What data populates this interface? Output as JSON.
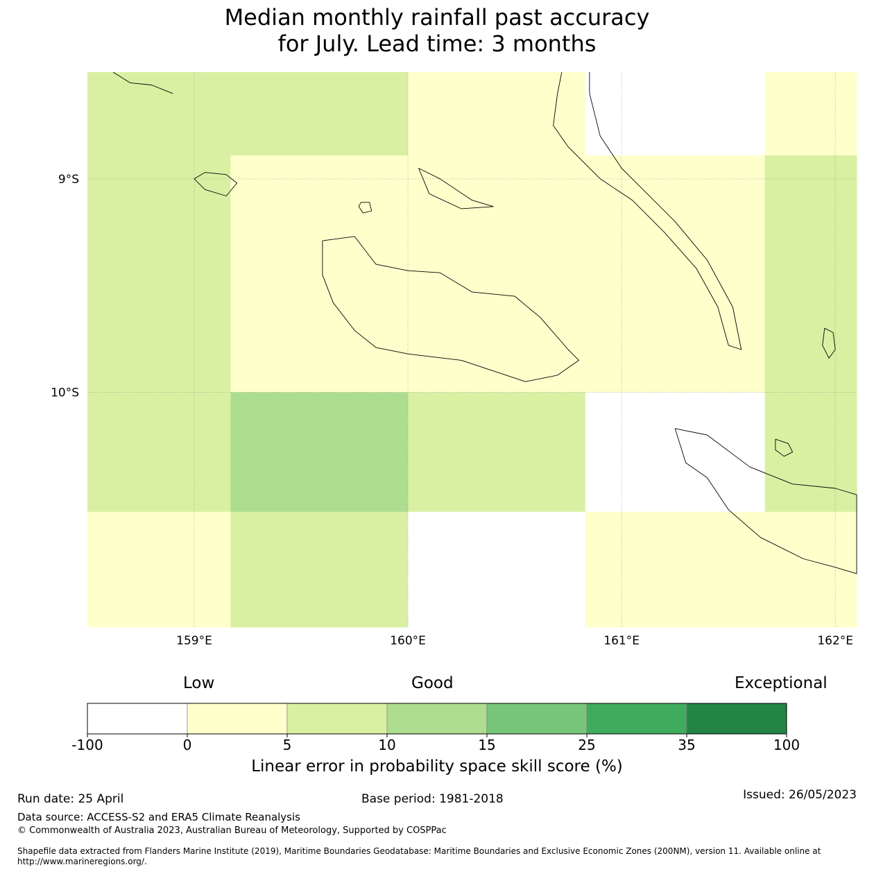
{
  "title": {
    "line1": "Median monthly rainfall past accuracy",
    "line2": "for July. Lead time: 3 months"
  },
  "map": {
    "lon_range": [
      158.5,
      162.1
    ],
    "lat_range": [
      -11.1,
      -8.5
    ],
    "lon_ticks": [
      {
        "value": 159,
        "label": "159°E"
      },
      {
        "value": 160,
        "label": "160°E"
      },
      {
        "value": 161,
        "label": "161°E"
      },
      {
        "value": 162,
        "label": "162°E"
      }
    ],
    "lat_ticks": [
      {
        "value": -9,
        "label": "9°S"
      },
      {
        "value": -10,
        "label": "10°S"
      }
    ],
    "gridlines": true,
    "cells": [
      {
        "lon": [
          158.5,
          159.17
        ],
        "lat": [
          -8.89,
          -8.5
        ],
        "cls": 2
      },
      {
        "lon": [
          159.17,
          160.0
        ],
        "lat": [
          -8.89,
          -8.5
        ],
        "cls": 2
      },
      {
        "lon": [
          160.0,
          160.83
        ],
        "lat": [
          -8.89,
          -8.5
        ],
        "cls": 1
      },
      {
        "lon": [
          160.83,
          161.67
        ],
        "lat": [
          -8.89,
          -8.5
        ],
        "cls": 0
      },
      {
        "lon": [
          161.67,
          162.1
        ],
        "lat": [
          -8.89,
          -8.5
        ],
        "cls": 1
      },
      {
        "lon": [
          158.5,
          159.17
        ],
        "lat": [
          -10.0,
          -8.89
        ],
        "cls": 2
      },
      {
        "lon": [
          159.17,
          160.0
        ],
        "lat": [
          -10.0,
          -8.89
        ],
        "cls": 1
      },
      {
        "lon": [
          160.0,
          160.83
        ],
        "lat": [
          -10.0,
          -8.89
        ],
        "cls": 1
      },
      {
        "lon": [
          160.83,
          161.67
        ],
        "lat": [
          -10.0,
          -8.89
        ],
        "cls": 1
      },
      {
        "lon": [
          161.67,
          162.1
        ],
        "lat": [
          -10.0,
          -8.89
        ],
        "cls": 2
      },
      {
        "lon": [
          158.5,
          159.17
        ],
        "lat": [
          -10.56,
          -10.0
        ],
        "cls": 2
      },
      {
        "lon": [
          159.17,
          160.0
        ],
        "lat": [
          -10.56,
          -10.0
        ],
        "cls": 3
      },
      {
        "lon": [
          160.0,
          160.83
        ],
        "lat": [
          -10.56,
          -10.0
        ],
        "cls": 2
      },
      {
        "lon": [
          160.83,
          161.67
        ],
        "lat": [
          -10.56,
          -10.0
        ],
        "cls": 0
      },
      {
        "lon": [
          161.67,
          162.1
        ],
        "lat": [
          -10.56,
          -10.0
        ],
        "cls": 2
      },
      {
        "lon": [
          158.5,
          159.17
        ],
        "lat": [
          -11.1,
          -10.56
        ],
        "cls": 1
      },
      {
        "lon": [
          159.17,
          160.0
        ],
        "lat": [
          -11.1,
          -10.56
        ],
        "cls": 2
      },
      {
        "lon": [
          160.0,
          160.83
        ],
        "lat": [
          -11.1,
          -10.56
        ],
        "cls": 0
      },
      {
        "lon": [
          160.83,
          161.67
        ],
        "lat": [
          -11.1,
          -10.56
        ],
        "cls": 1
      },
      {
        "lon": [
          161.67,
          162.1
        ],
        "lat": [
          -11.1,
          -10.56
        ],
        "cls": 1
      }
    ],
    "coastlines": [
      {
        "name": "guadalcanal",
        "pts": [
          [
            159.6,
            -9.29
          ],
          [
            159.75,
            -9.27
          ],
          [
            159.85,
            -9.4
          ],
          [
            160.0,
            -9.43
          ],
          [
            160.15,
            -9.44
          ],
          [
            160.3,
            -9.53
          ],
          [
            160.5,
            -9.55
          ],
          [
            160.62,
            -9.65
          ],
          [
            160.75,
            -9.8
          ],
          [
            160.8,
            -9.85
          ],
          [
            160.7,
            -9.92
          ],
          [
            160.55,
            -9.95
          ],
          [
            160.4,
            -9.9
          ],
          [
            160.25,
            -9.85
          ],
          [
            160.0,
            -9.82
          ],
          [
            159.85,
            -9.79
          ],
          [
            159.75,
            -9.71
          ],
          [
            159.65,
            -9.58
          ],
          [
            159.6,
            -9.45
          ],
          [
            159.6,
            -9.29
          ]
        ]
      },
      {
        "name": "malaita-north",
        "pts": [
          [
            160.72,
            -8.5
          ],
          [
            160.7,
            -8.6
          ],
          [
            160.68,
            -8.75
          ],
          [
            160.75,
            -8.85
          ],
          [
            160.9,
            -9.0
          ],
          [
            161.05,
            -9.1
          ],
          [
            161.2,
            -9.25
          ],
          [
            161.35,
            -9.42
          ],
          [
            161.45,
            -9.6
          ],
          [
            161.5,
            -9.78
          ],
          [
            161.56,
            -9.8
          ],
          [
            161.52,
            -9.6
          ],
          [
            161.4,
            -9.38
          ],
          [
            161.25,
            -9.2
          ],
          [
            161.1,
            -9.05
          ],
          [
            161.0,
            -8.95
          ],
          [
            160.9,
            -8.8
          ],
          [
            160.85,
            -8.6
          ],
          [
            160.85,
            -8.5
          ]
        ]
      },
      {
        "name": "florida-islands",
        "pts": [
          [
            160.05,
            -8.95
          ],
          [
            160.15,
            -9.0
          ],
          [
            160.3,
            -9.1
          ],
          [
            160.4,
            -9.13
          ],
          [
            160.25,
            -9.14
          ],
          [
            160.1,
            -9.07
          ],
          [
            160.05,
            -8.95
          ]
        ]
      },
      {
        "name": "russell-islands",
        "pts": [
          [
            159.05,
            -8.97
          ],
          [
            159.15,
            -8.98
          ],
          [
            159.2,
            -9.02
          ],
          [
            159.15,
            -9.08
          ],
          [
            159.05,
            -9.05
          ],
          [
            159.0,
            -9.0
          ],
          [
            159.05,
            -8.97
          ]
        ]
      },
      {
        "name": "savo-island",
        "pts": [
          [
            159.78,
            -9.11
          ],
          [
            159.82,
            -9.11
          ],
          [
            159.83,
            -9.15
          ],
          [
            159.79,
            -9.16
          ],
          [
            159.77,
            -9.13
          ],
          [
            159.78,
            -9.11
          ]
        ]
      },
      {
        "name": "new-georgia-tip",
        "pts": [
          [
            158.62,
            -8.5
          ],
          [
            158.7,
            -8.55
          ],
          [
            158.8,
            -8.56
          ],
          [
            158.9,
            -8.6
          ]
        ]
      },
      {
        "name": "san-cristobal",
        "pts": [
          [
            161.25,
            -10.17
          ],
          [
            161.4,
            -10.2
          ],
          [
            161.6,
            -10.35
          ],
          [
            161.8,
            -10.43
          ],
          [
            162.0,
            -10.45
          ],
          [
            162.1,
            -10.48
          ],
          [
            162.1,
            -10.85
          ],
          [
            162.0,
            -10.82
          ],
          [
            161.85,
            -10.78
          ],
          [
            161.65,
            -10.68
          ],
          [
            161.5,
            -10.55
          ],
          [
            161.4,
            -10.4
          ],
          [
            161.3,
            -10.33
          ],
          [
            161.25,
            -10.17
          ]
        ]
      },
      {
        "name": "ulawa-island",
        "pts": [
          [
            161.95,
            -9.7
          ],
          [
            161.99,
            -9.72
          ],
          [
            162.0,
            -9.8
          ],
          [
            161.97,
            -9.84
          ],
          [
            161.94,
            -9.78
          ],
          [
            161.95,
            -9.7
          ]
        ]
      },
      {
        "name": "uki-island",
        "pts": [
          [
            161.72,
            -10.22
          ],
          [
            161.78,
            -10.24
          ],
          [
            161.8,
            -10.28
          ],
          [
            161.76,
            -10.3
          ],
          [
            161.72,
            -10.27
          ],
          [
            161.72,
            -10.22
          ]
        ]
      }
    ]
  },
  "colorbar": {
    "labels": [
      "-100",
      "0",
      "5",
      "10",
      "15",
      "25",
      "35",
      "100"
    ],
    "colors": [
      "#ffffff",
      "#ffffcc",
      "#d9f0a3",
      "#addd8e",
      "#78c679",
      "#41ab5d",
      "#238443"
    ],
    "category_low": "Low",
    "category_good": "Good",
    "category_exceptional": "Exceptional",
    "axis_title": "Linear error in probability space skill score (%)"
  },
  "footer": {
    "run_date": "Run date: 25 April",
    "base_period": "Base period: 1981-2018",
    "issued": "Issued: 26/05/2023",
    "data_source": "Data source: ACCESS-S2 and ERA5 Climate Reanalysis",
    "copyright": "© Commonwealth of Australia 2023, Australian Bureau of Meteorology, Supported by COSPPac",
    "shapefile": "Shapefile data extracted from Flanders Marine Institute (2019), Maritime Boundaries Geodatabase: Maritime Boundaries and Exclusive Economic Zones (200NM), version 11. Available online at http://www.marineregions.org/."
  }
}
